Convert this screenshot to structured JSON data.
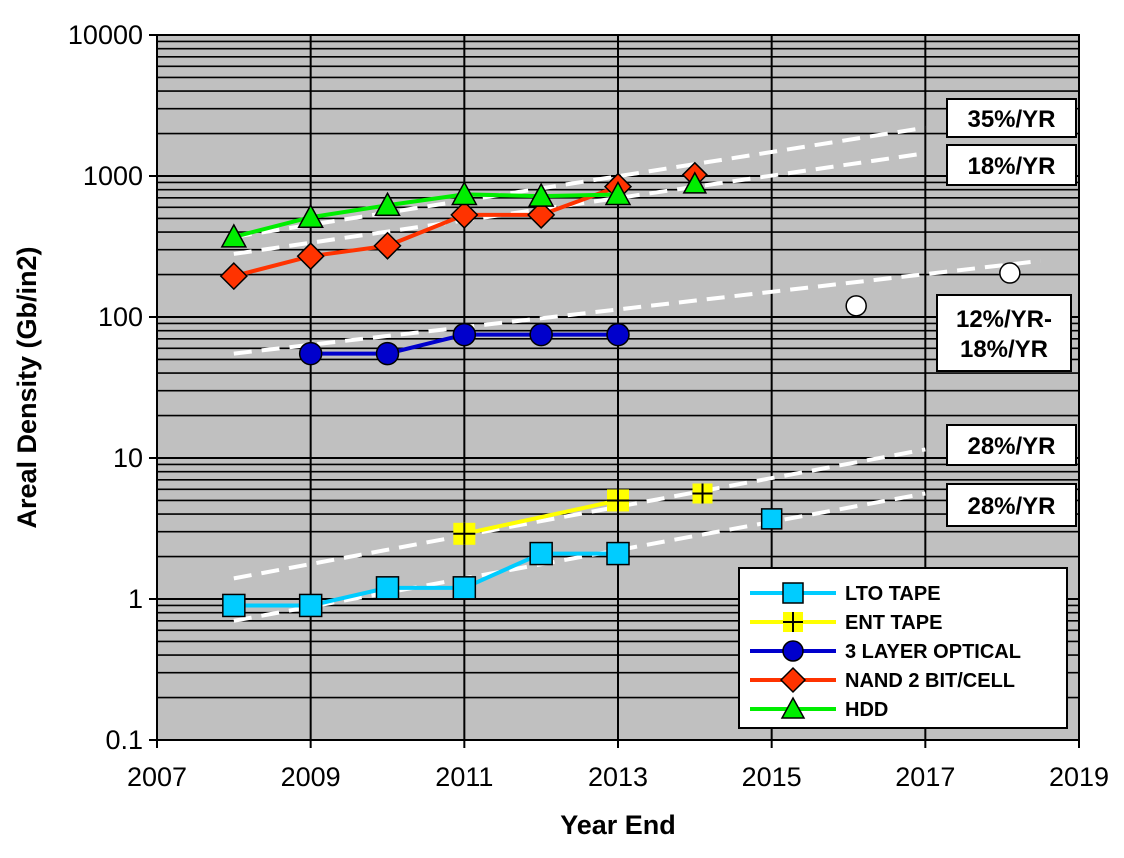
{
  "chart_data": {
    "type": "line",
    "title": "",
    "xlabel": "Year End",
    "ylabel": "Areal Density (Gb/in2)",
    "xlim": [
      2007,
      2019
    ],
    "ylim": [
      0.1,
      10000
    ],
    "y_scale": "log",
    "grid": true,
    "x_ticks": [
      "2007",
      "2009",
      "2011",
      "2013",
      "2015",
      "2017",
      "2019"
    ],
    "y_ticks": [
      "0.1",
      "1",
      "10",
      "100",
      "1000",
      "10000"
    ],
    "legend_position": "bottom-right",
    "series": [
      {
        "name": "LTO TAPE",
        "color": "#00ccff",
        "marker": "square",
        "x": [
          2008,
          2009,
          2010,
          2011,
          2012,
          2013
        ],
        "y": [
          0.9,
          0.9,
          1.2,
          1.2,
          2.1,
          2.1
        ]
      },
      {
        "name": "ENT TAPE",
        "color": "#ffff00",
        "marker": "cross",
        "x": [
          2011,
          2013
        ],
        "y": [
          2.9,
          5.0
        ]
      },
      {
        "name": "3 LAYER OPTICAL",
        "color": "#0000cc",
        "marker": "circle",
        "x": [
          2009,
          2010,
          2011,
          2012,
          2013
        ],
        "y": [
          55,
          55,
          75,
          75,
          75
        ]
      },
      {
        "name": "NAND 2 BIT/CELL",
        "color": "#ff3300",
        "marker": "diamond",
        "x": [
          2008,
          2009,
          2010,
          2011,
          2012,
          2013
        ],
        "y": [
          195,
          270,
          320,
          530,
          530,
          840
        ]
      },
      {
        "name": "HDD",
        "color": "#00ee00",
        "marker": "triangle",
        "x": [
          2008,
          2009,
          2010,
          2011,
          2012,
          2013
        ],
        "y": [
          370,
          510,
          620,
          740,
          720,
          740
        ]
      }
    ],
    "projected_points": [
      {
        "series": "LTO TAPE",
        "x": 2015,
        "y": 3.7
      },
      {
        "series": "ENT TAPE",
        "x": 2014.1,
        "y": 5.6
      },
      {
        "series": "NAND 2 BIT/CELL",
        "x": 2014,
        "y": 1020
      },
      {
        "series": "HDD",
        "x": 2014,
        "y": 880
      },
      {
        "series": "3 LAYER OPTICAL",
        "x": 2016.1,
        "y": 120
      },
      {
        "series": "3 LAYER OPTICAL",
        "x": 2018.1,
        "y": 205
      }
    ],
    "trend_lines": [
      {
        "label": "35%/YR",
        "x": [
          2008,
          2017
        ],
        "y": [
          370,
          2200
        ]
      },
      {
        "label": "18%/YR",
        "x": [
          2008,
          2017
        ],
        "y": [
          280,
          1450
        ]
      },
      {
        "label": "12%/YR-18%/YR",
        "x": [
          2008,
          2018.5
        ],
        "y": [
          55,
          250
        ]
      },
      {
        "label": "28%/YR",
        "x": [
          2008,
          2017
        ],
        "y": [
          1.4,
          11.5
        ]
      },
      {
        "label": "28%/YR",
        "x": [
          2008,
          2017
        ],
        "y": [
          0.7,
          5.6
        ]
      }
    ],
    "rate_labels": [
      "35%/YR",
      "18%/YR",
      "12%/YR-",
      "18%/YR",
      "28%/YR",
      "28%/YR"
    ],
    "colors": {
      "plot_background": "#c0c0c0",
      "trend_line": "#ffffff"
    }
  }
}
